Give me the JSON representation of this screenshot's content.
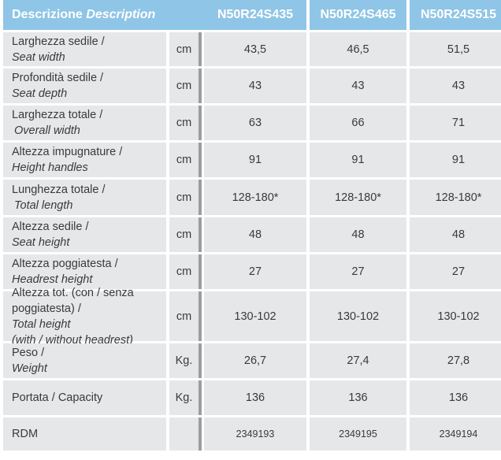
{
  "header": {
    "description_it": "Descrizione",
    "description_en": "Description",
    "models": [
      "N50R24S435",
      "N50R24S465",
      "N50R24S515"
    ]
  },
  "rows": [
    {
      "label_it": "Larghezza sedile /",
      "label_en": "Seat width",
      "unit": "cm",
      "values": [
        "43,5",
        "46,5",
        "51,5"
      ]
    },
    {
      "label_it": "Profondità sedile /",
      "label_en": "Seat depth",
      "unit": "cm",
      "values": [
        "43",
        "43",
        "43"
      ]
    },
    {
      "label_it": "Larghezza totale /",
      "label_en": "Overall width",
      "unit": "cm",
      "values": [
        "63",
        "66",
        "71"
      ]
    },
    {
      "label_it": "Altezza impugnature /",
      "label_en": "Height handles",
      "unit": "cm",
      "values": [
        "91",
        "91",
        "91"
      ]
    },
    {
      "label_it": "Lunghezza totale /",
      "label_en": "Total length",
      "unit": "cm",
      "values": [
        "128-180*",
        "128-180*",
        "128-180*"
      ]
    },
    {
      "label_it": "Altezza sedile /",
      "label_en": "Seat height",
      "unit": "cm",
      "values": [
        "48",
        "48",
        "48"
      ]
    },
    {
      "label_it": "Altezza poggiatesta /",
      "label_en": "Headrest height",
      "unit": "cm",
      "values": [
        "27",
        "27",
        "27"
      ]
    },
    {
      "label_line1": "Altezza tot. (con / senza",
      "label_line2_it": "poggiatesta) / ",
      "label_line2_en": "Total height",
      "label_line3_en": "(with / without headrest)",
      "unit": "cm",
      "values": [
        "130-102",
        "130-102",
        "130-102"
      ]
    },
    {
      "label_it": "Peso / ",
      "label_en": "Weight",
      "unit": "Kg.",
      "values": [
        "26,7",
        "27,4",
        "27,8"
      ]
    },
    {
      "label_plain": "Portata / Capacity",
      "unit": "Kg.",
      "values": [
        "136",
        "136",
        "136"
      ]
    },
    {
      "label_plain": "RDM",
      "unit": "",
      "values": [
        "2349193",
        "2349195",
        "2349194"
      ]
    }
  ]
}
